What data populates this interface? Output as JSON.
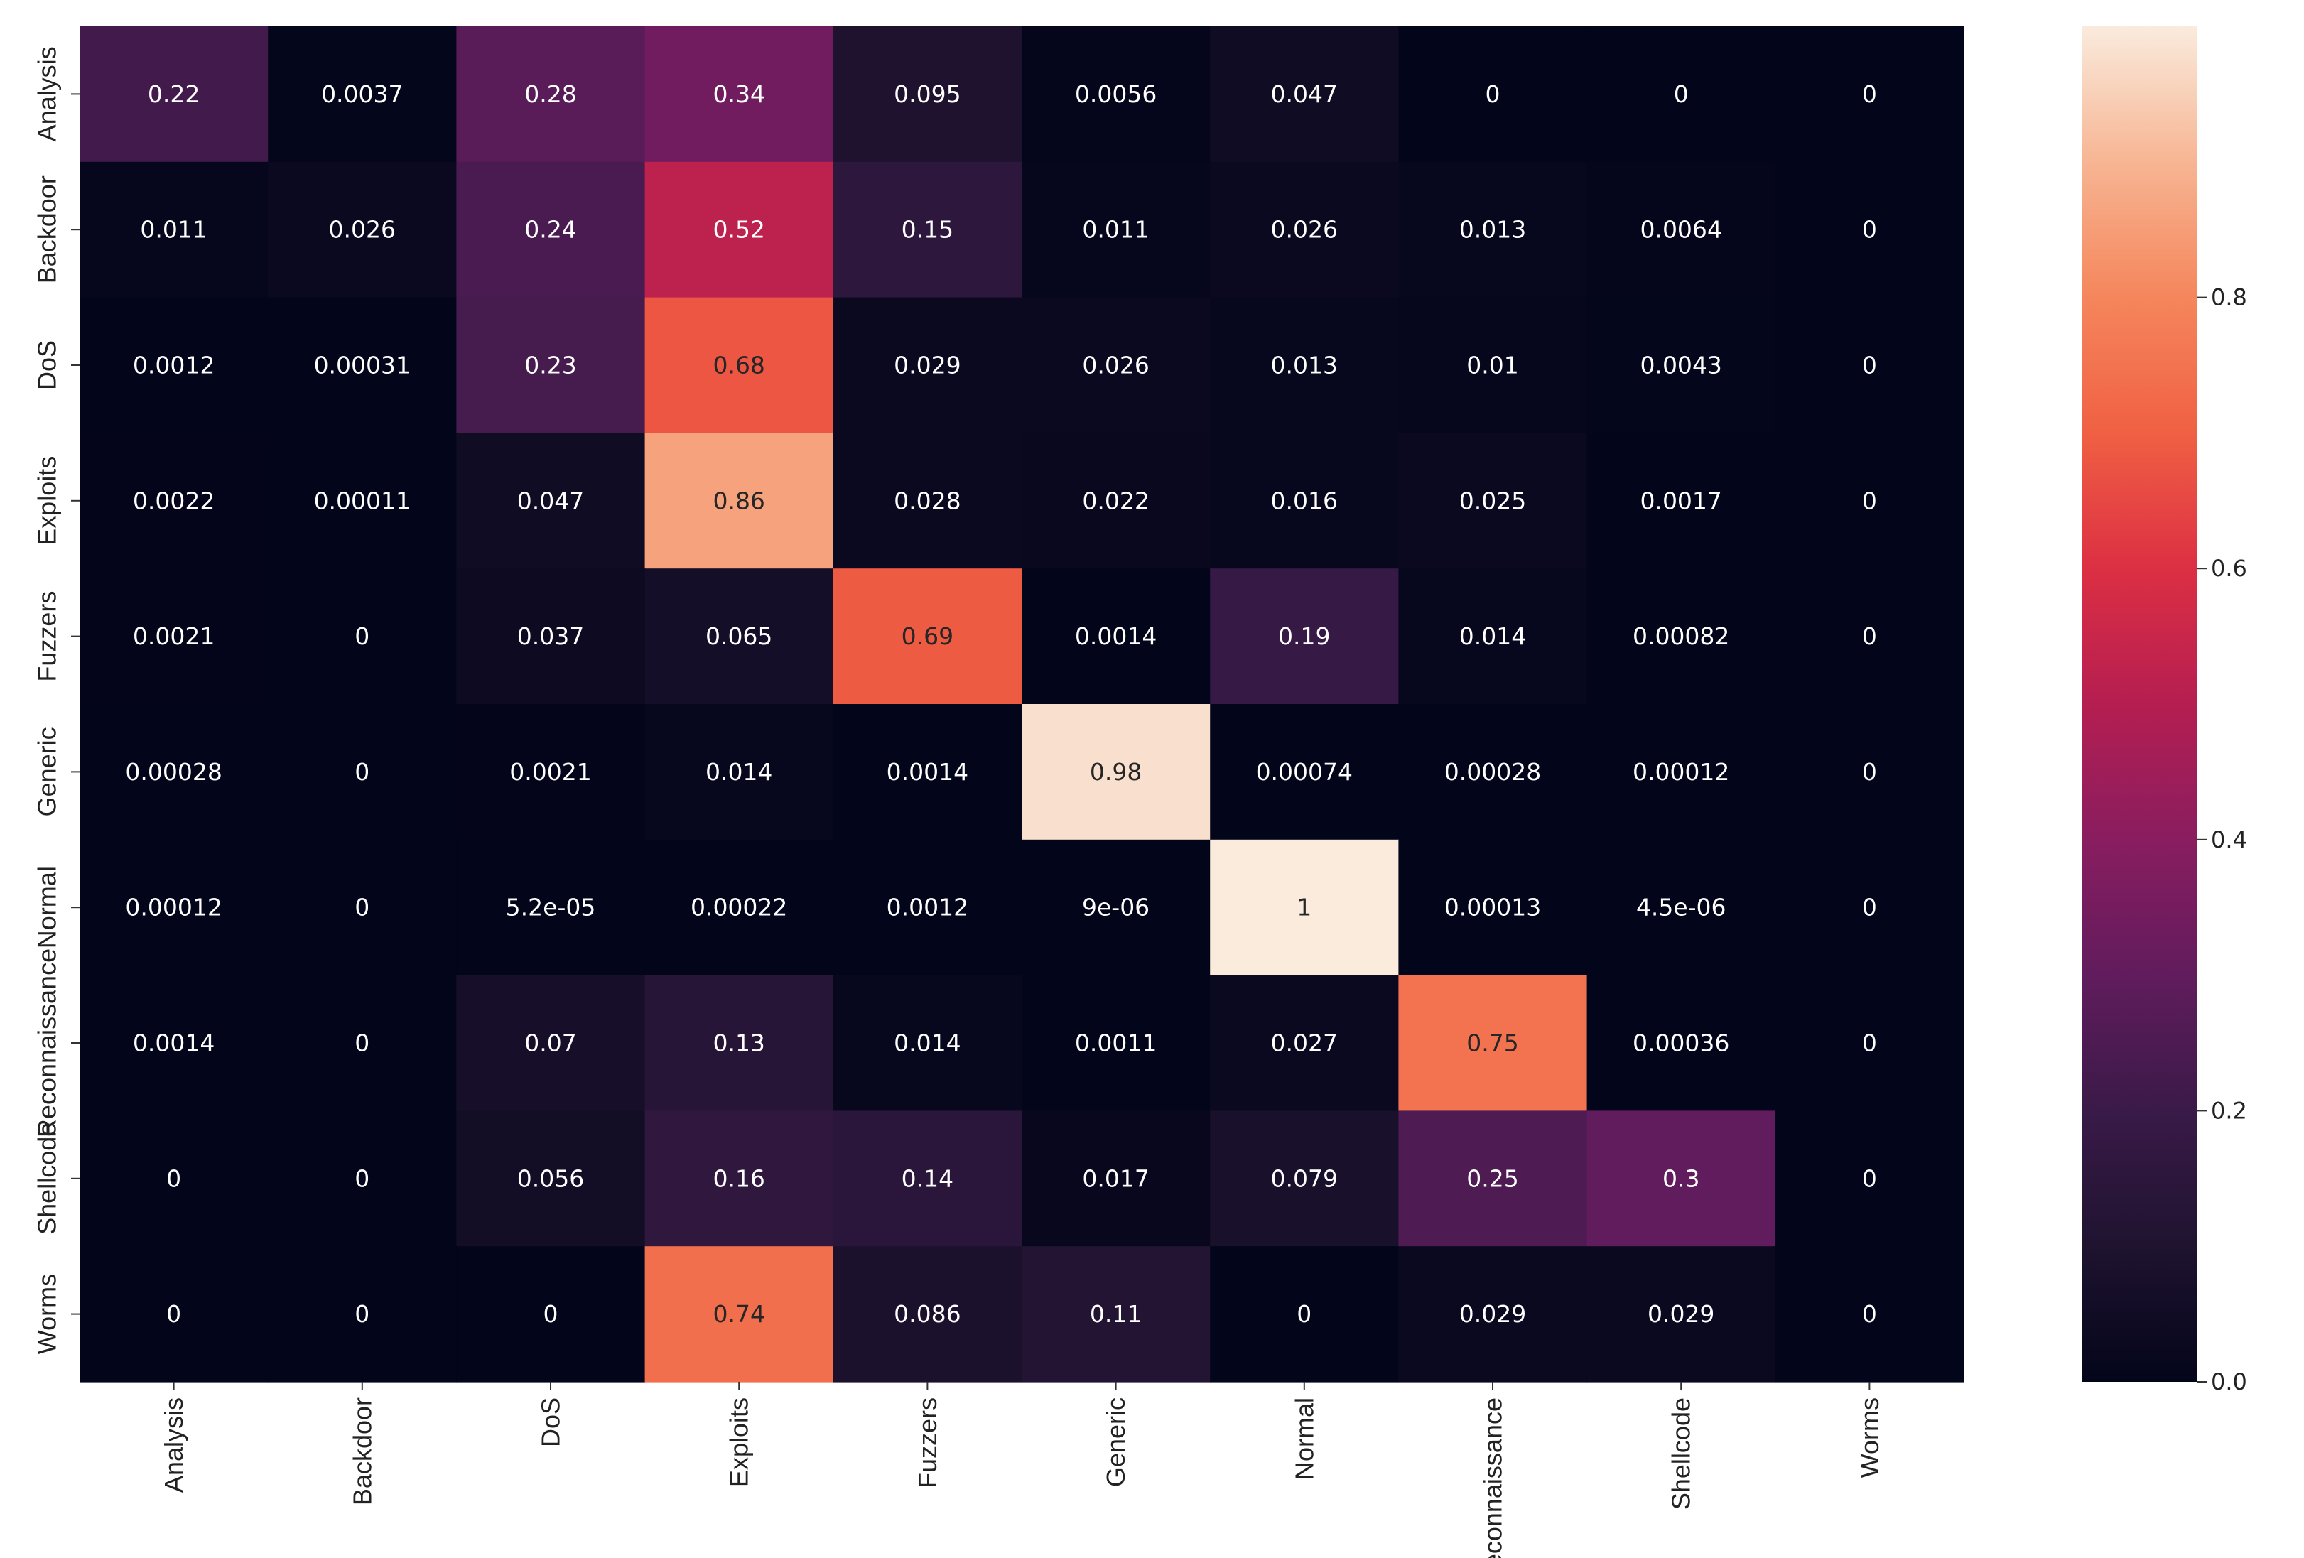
{
  "chart_data": {
    "type": "heatmap",
    "title": "",
    "xlabel": "",
    "ylabel": "",
    "row_labels": [
      "Analysis",
      "Backdoor",
      "DoS",
      "Exploits",
      "Fuzzers",
      "Generic",
      "Normal",
      "Reconnaissance",
      "Shellcode",
      "Worms"
    ],
    "col_labels": [
      "Analysis",
      "Backdoor",
      "DoS",
      "Exploits",
      "Fuzzers",
      "Generic",
      "Normal",
      "Reconnaissance",
      "Shellcode",
      "Worms"
    ],
    "values": [
      [
        0.22,
        0.0037,
        0.28,
        0.34,
        0.095,
        0.0056,
        0.047,
        0,
        0,
        0
      ],
      [
        0.011,
        0.026,
        0.24,
        0.52,
        0.15,
        0.011,
        0.026,
        0.013,
        0.0064,
        0
      ],
      [
        0.0012,
        0.00031,
        0.23,
        0.68,
        0.029,
        0.026,
        0.013,
        0.01,
        0.0043,
        0
      ],
      [
        0.0022,
        0.00011,
        0.047,
        0.86,
        0.028,
        0.022,
        0.016,
        0.025,
        0.0017,
        0
      ],
      [
        0.0021,
        0,
        0.037,
        0.065,
        0.69,
        0.0014,
        0.19,
        0.014,
        0.00082,
        0
      ],
      [
        0.00028,
        0,
        0.0021,
        0.014,
        0.0014,
        0.98,
        0.00074,
        0.00028,
        0.00012,
        0
      ],
      [
        0.00012,
        0,
        5.2e-05,
        0.00022,
        0.0012,
        9e-06,
        1,
        0.00013,
        4.5e-06,
        0
      ],
      [
        0.0014,
        0,
        0.07,
        0.13,
        0.014,
        0.0011,
        0.027,
        0.75,
        0.00036,
        0
      ],
      [
        0,
        0,
        0.056,
        0.16,
        0.14,
        0.017,
        0.079,
        0.25,
        0.3,
        0
      ],
      [
        0,
        0,
        0,
        0.74,
        0.086,
        0.11,
        0,
        0.029,
        0.029,
        0
      ]
    ],
    "annotations": [
      [
        "0.22",
        "0.0037",
        "0.28",
        "0.34",
        "0.095",
        "0.0056",
        "0.047",
        "0",
        "0",
        "0"
      ],
      [
        "0.011",
        "0.026",
        "0.24",
        "0.52",
        "0.15",
        "0.011",
        "0.026",
        "0.013",
        "0.0064",
        "0"
      ],
      [
        "0.0012",
        "0.00031",
        "0.23",
        "0.68",
        "0.029",
        "0.026",
        "0.013",
        "0.01",
        "0.0043",
        "0"
      ],
      [
        "0.0022",
        "0.00011",
        "0.047",
        "0.86",
        "0.028",
        "0.022",
        "0.016",
        "0.025",
        "0.0017",
        "0"
      ],
      [
        "0.0021",
        "0",
        "0.037",
        "0.065",
        "0.69",
        "0.0014",
        "0.19",
        "0.014",
        "0.00082",
        "0"
      ],
      [
        "0.00028",
        "0",
        "0.0021",
        "0.014",
        "0.0014",
        "0.98",
        "0.00074",
        "0.00028",
        "0.00012",
        "0"
      ],
      [
        "0.00012",
        "0",
        "5.2e-05",
        "0.00022",
        "0.0012",
        "9e-06",
        "1",
        "0.00013",
        "4.5e-06",
        "0"
      ],
      [
        "0.0014",
        "0",
        "0.07",
        "0.13",
        "0.014",
        "0.0011",
        "0.027",
        "0.75",
        "0.00036",
        "0"
      ],
      [
        "0",
        "0",
        "0.056",
        "0.16",
        "0.14",
        "0.017",
        "0.079",
        "0.25",
        "0.3",
        "0"
      ],
      [
        "0",
        "0",
        "0",
        "0.74",
        "0.086",
        "0.11",
        "0",
        "0.029",
        "0.029",
        "0"
      ]
    ],
    "colorbar": {
      "colormap": "rocket",
      "range": [
        0,
        1
      ],
      "ticks": [
        0.0,
        0.2,
        0.4,
        0.6,
        0.8
      ],
      "tick_labels": [
        "0.0",
        "0.2",
        "0.4",
        "0.6",
        "0.8"
      ]
    }
  }
}
